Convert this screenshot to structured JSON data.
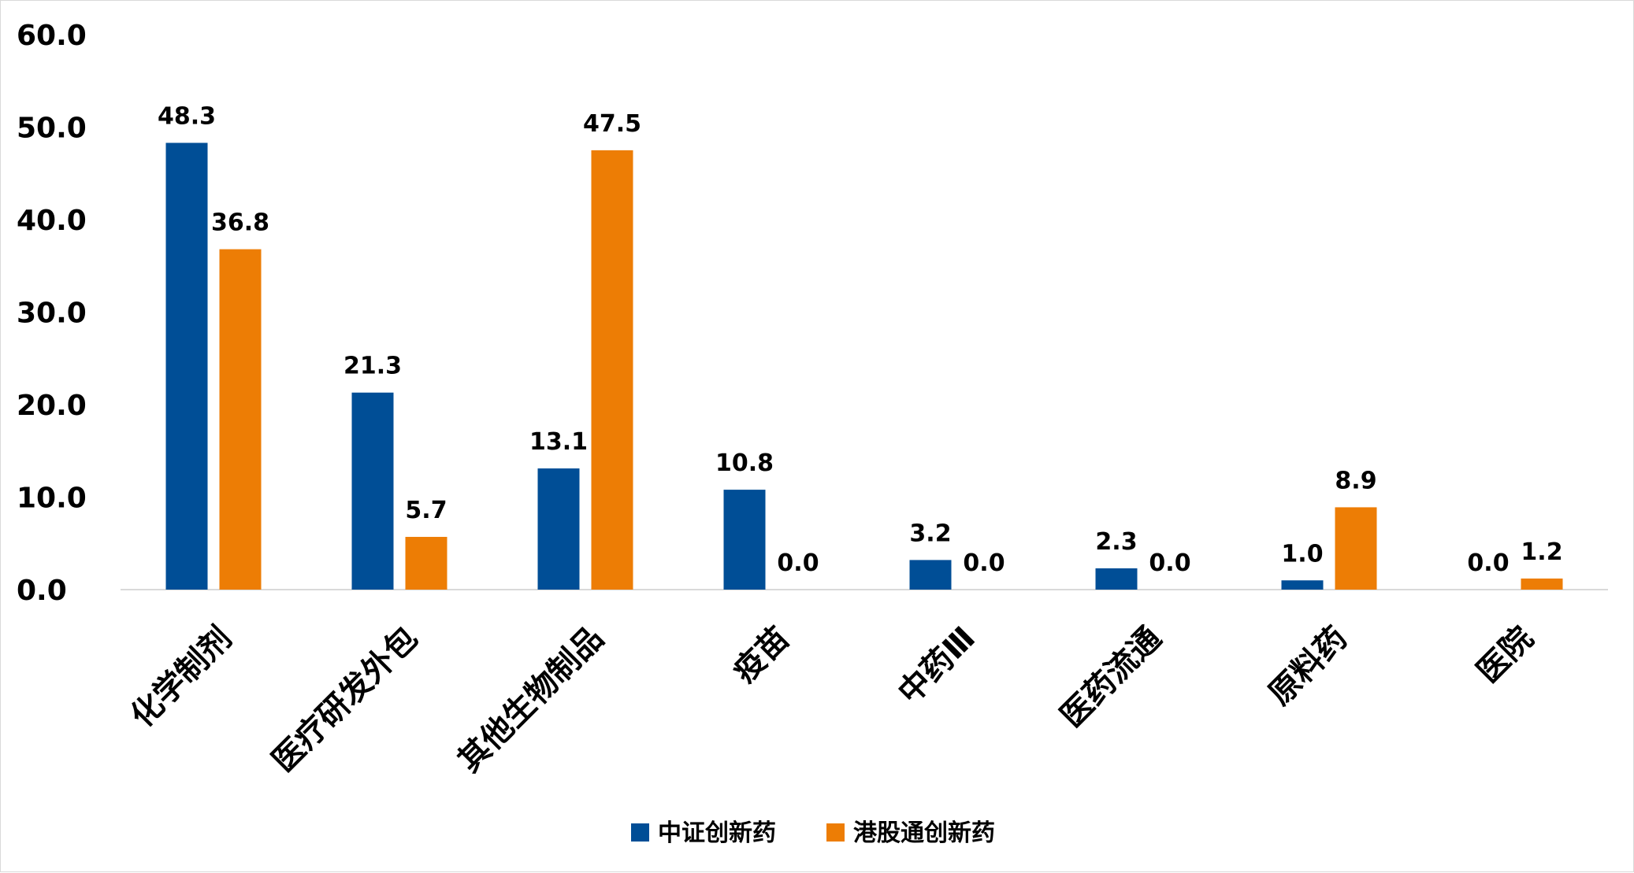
{
  "chart_data": {
    "type": "bar",
    "title": "",
    "xlabel": "",
    "ylabel": "",
    "ylim": [
      0,
      60
    ],
    "yticks": [
      "0.0",
      "10.0",
      "20.0",
      "30.0",
      "40.0",
      "50.0",
      "60.0"
    ],
    "grid": false,
    "legend_position": "bottom",
    "categories": [
      "化学制剂",
      "医疗研发外包",
      "其他生物制品",
      "疫苗",
      "中药Ⅲ",
      "医药流通",
      "原料药",
      "医院"
    ],
    "series": [
      {
        "name": "中证创新药",
        "color": "#004e96",
        "values": [
          48.3,
          21.3,
          13.1,
          10.8,
          3.2,
          2.3,
          1.0,
          0.0
        ],
        "labels": [
          "48.3",
          "21.3",
          "13.1",
          "10.8",
          "3.2",
          "2.3",
          "1.0",
          "0.0"
        ]
      },
      {
        "name": "港股通创新药",
        "color": "#ed7d05",
        "values": [
          36.8,
          5.7,
          47.5,
          0.0,
          0.0,
          0.0,
          8.9,
          1.2
        ],
        "labels": [
          "36.8",
          "5.7",
          "47.5",
          "0.0",
          "0.0",
          "0.0",
          "8.9",
          "1.2"
        ]
      }
    ]
  }
}
